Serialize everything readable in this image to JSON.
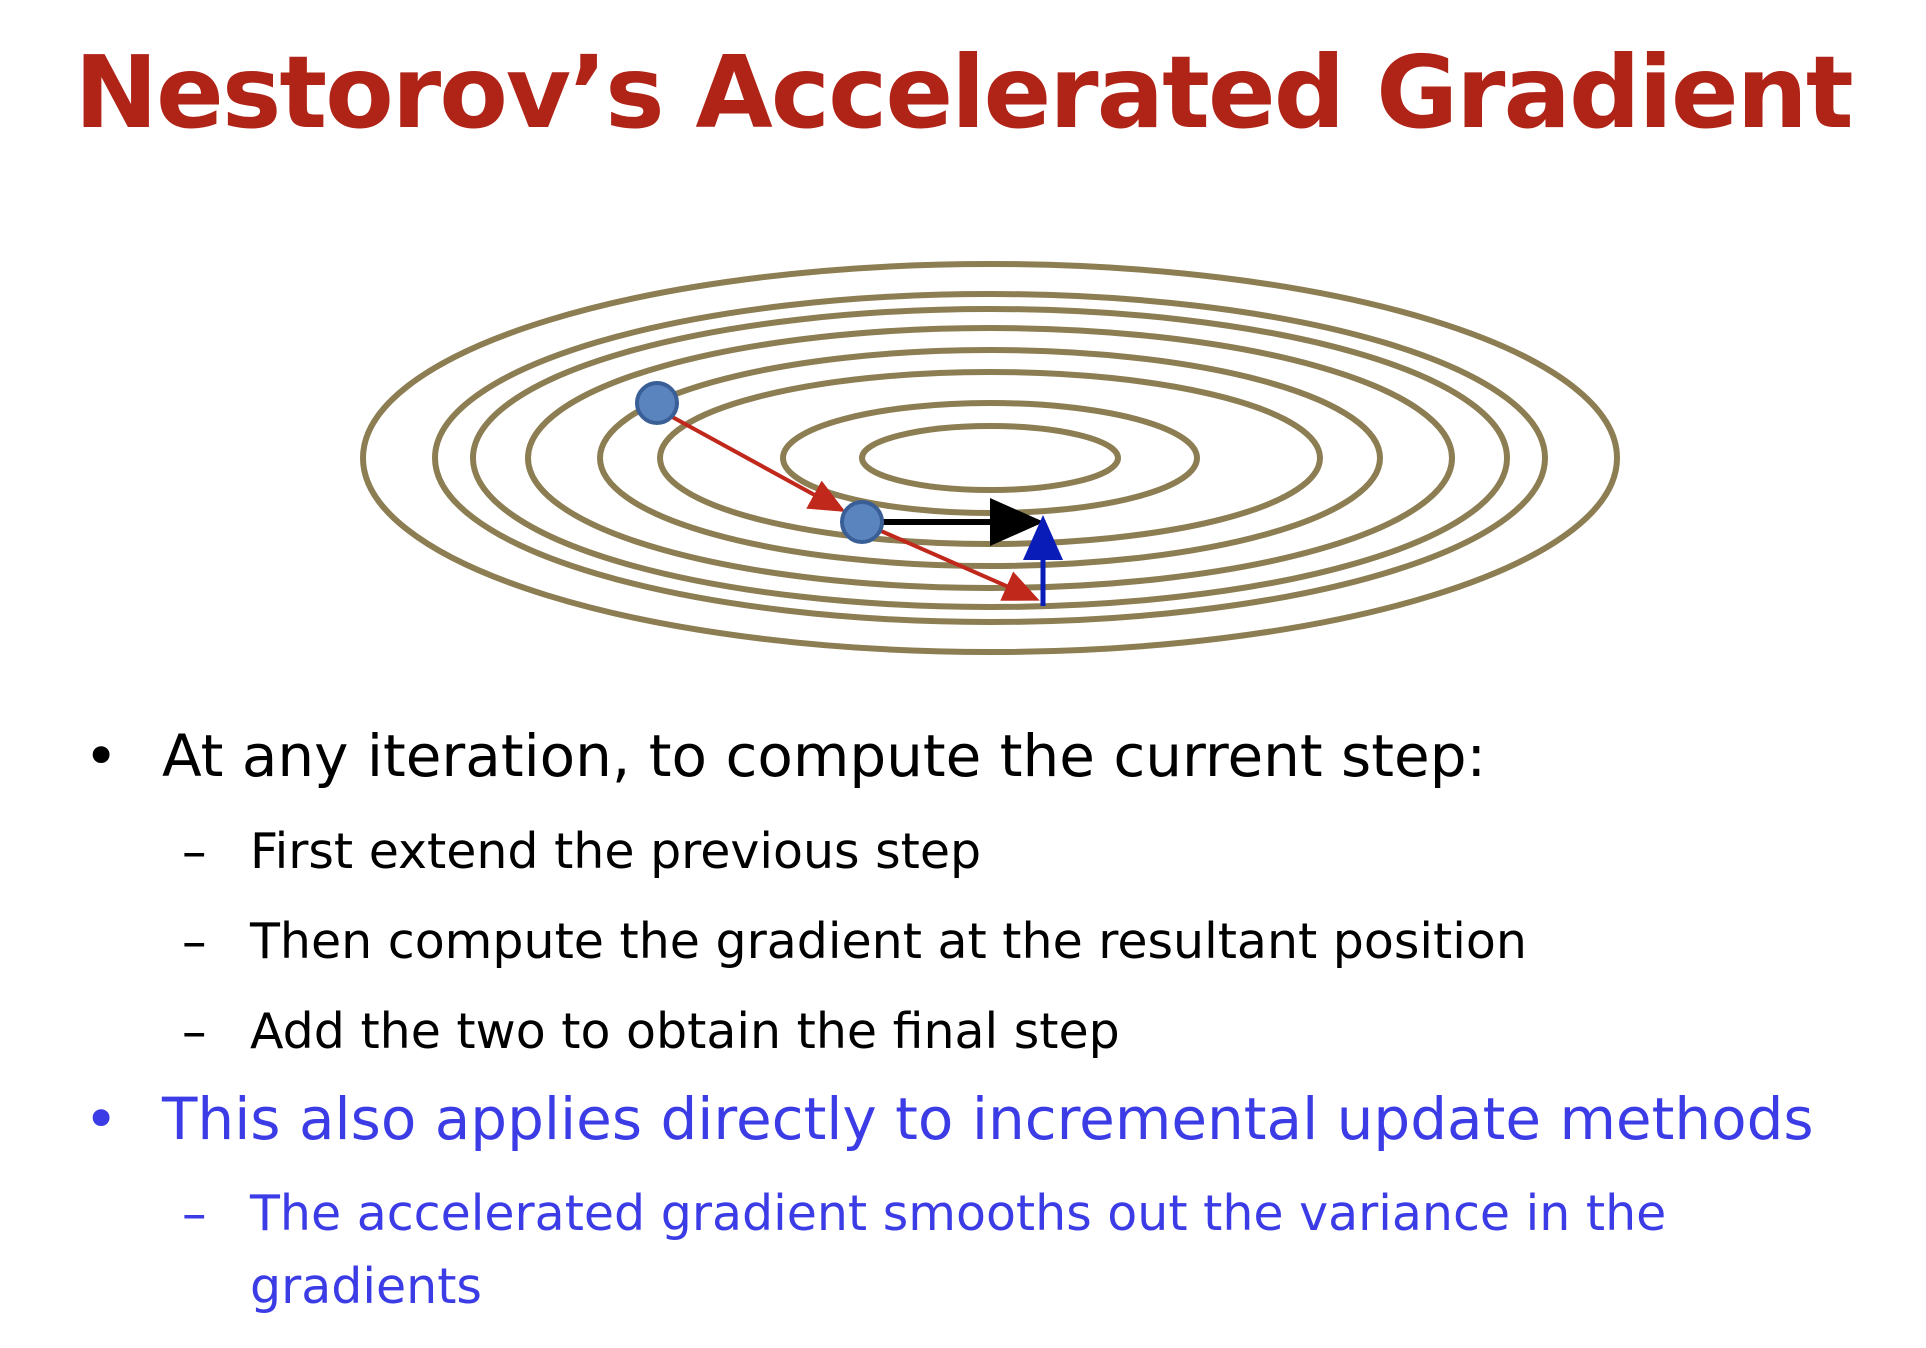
{
  "title": "Nestorov’s Accelerated Gradient",
  "colors": {
    "title": "#b02418",
    "contour": "#8c7e52",
    "momentum_arrow": "#c0281c",
    "extend_arrow": "#000000",
    "gradient_arrow": "#0a1cb8",
    "point_fill": "#5a84be",
    "point_stroke": "#3a5f96",
    "text_black": "#000000",
    "text_blue": "#3c3ce6"
  },
  "bullets": [
    {
      "marker": "•",
      "text": "At any iteration, to compute the current step:",
      "color": "#000000",
      "subitems": [
        {
          "marker": "–",
          "text": "First extend the previous step",
          "color": "#000000"
        },
        {
          "marker": "–",
          "text": "Then compute the gradient at the resultant position",
          "color": "#000000"
        },
        {
          "marker": "–",
          "text": "Add the two to obtain the final step",
          "color": "#000000"
        }
      ]
    },
    {
      "marker": "•",
      "text": "This also applies directly to incremental update methods",
      "color": "#3c3ce6",
      "subitems": [
        {
          "marker": "–",
          "text": "The accelerated gradient smooths out the variance in the",
          "continuation": "gradients",
          "color": "#3c3ce6"
        }
      ]
    }
  ]
}
